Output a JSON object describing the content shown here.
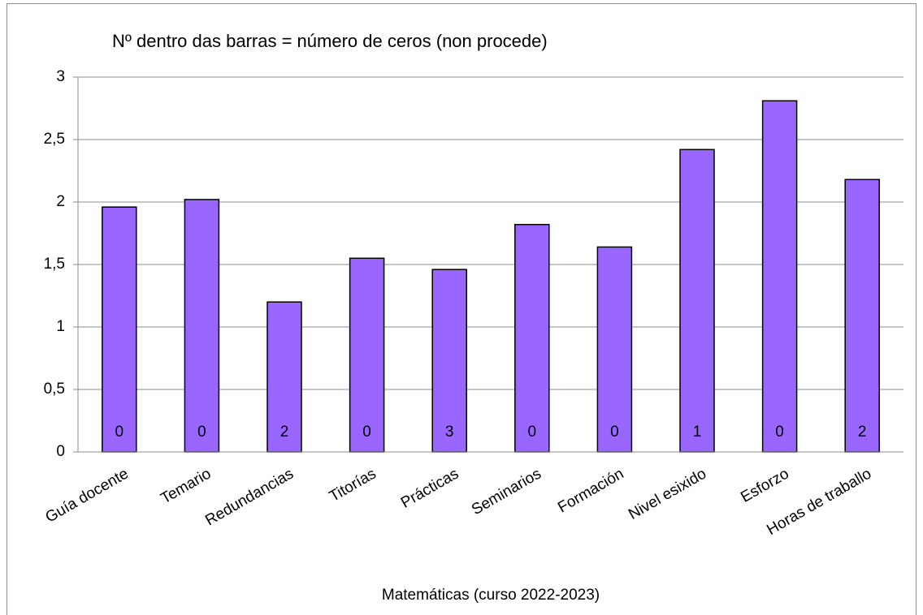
{
  "chart_data": {
    "type": "bar",
    "annotation": "Nº dentro das barras = número de ceros (non procede)",
    "x_label": "Matemáticas (curso 2022-2023)",
    "categories": [
      "Guía docente",
      "Temario",
      "Redundancias",
      "Titorías",
      "Prácticas",
      "Seminarios",
      "Formación",
      "Nivel esixido",
      "Esforzo",
      "Horas de traballo"
    ],
    "values": [
      1.96,
      2.02,
      1.2,
      1.55,
      1.46,
      1.82,
      1.64,
      2.42,
      2.81,
      2.18
    ],
    "zero_counts": [
      0,
      0,
      2,
      0,
      3,
      0,
      0,
      1,
      0,
      2
    ],
    "color": "#9966ff",
    "ylim": [
      0,
      3
    ],
    "yticks": [
      0,
      {
        "value": 0.5,
        "label": "0,5"
      },
      1,
      {
        "value": 1.5,
        "label": "1,5"
      },
      2,
      {
        "value": 2.5,
        "label": "2,5"
      },
      3
    ],
    "grid": true
  }
}
